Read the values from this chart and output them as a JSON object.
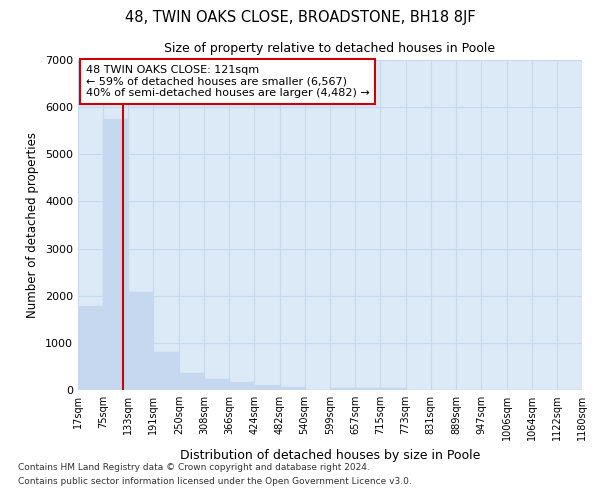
{
  "title": "48, TWIN OAKS CLOSE, BROADSTONE, BH18 8JF",
  "subtitle": "Size of property relative to detached houses in Poole",
  "xlabel": "Distribution of detached houses by size in Poole",
  "ylabel": "Number of detached properties",
  "footnote1": "Contains HM Land Registry data © Crown copyright and database right 2024.",
  "footnote2": "Contains public sector information licensed under the Open Government Licence v3.0.",
  "annotation_title": "48 TWIN OAKS CLOSE: 121sqm",
  "annotation_line1": "← 59% of detached houses are smaller (6,567)",
  "annotation_line2": "40% of semi-detached houses are larger (4,482) →",
  "property_size_sqm": 121,
  "bar_color": "#c5d8f0",
  "vline_color": "#cc0000",
  "annotation_box_edge": "#cc0000",
  "annotation_box_face": "white",
  "grid_color": "#c8d8ee",
  "background_color": "#dce9f7",
  "ylim": [
    0,
    7000
  ],
  "bin_edges": [
    17,
    75,
    133,
    191,
    250,
    308,
    366,
    424,
    482,
    540,
    599,
    657,
    715,
    773,
    831,
    889,
    947,
    1006,
    1064,
    1122,
    1180
  ],
  "bin_labels": [
    "17sqm",
    "75sqm",
    "133sqm",
    "191sqm",
    "250sqm",
    "308sqm",
    "366sqm",
    "424sqm",
    "482sqm",
    "540sqm",
    "599sqm",
    "657sqm",
    "715sqm",
    "773sqm",
    "831sqm",
    "889sqm",
    "947sqm",
    "1006sqm",
    "1064sqm",
    "1122sqm",
    "1180sqm"
  ],
  "bar_heights": [
    1780,
    5750,
    2070,
    800,
    370,
    240,
    170,
    110,
    60,
    0,
    50,
    50,
    50,
    0,
    0,
    0,
    0,
    0,
    0,
    0
  ]
}
